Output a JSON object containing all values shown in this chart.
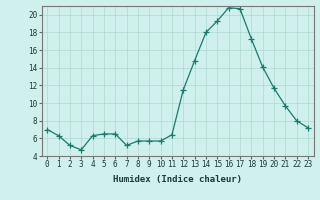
{
  "x": [
    0,
    1,
    2,
    3,
    4,
    5,
    6,
    7,
    8,
    9,
    10,
    11,
    12,
    13,
    14,
    15,
    16,
    17,
    18,
    19,
    20,
    21,
    22,
    23
  ],
  "y": [
    7.0,
    6.3,
    5.2,
    4.7,
    6.3,
    6.5,
    6.5,
    5.2,
    5.7,
    5.7,
    5.7,
    6.4,
    11.5,
    14.8,
    18.0,
    19.3,
    20.8,
    20.7,
    17.3,
    14.1,
    11.7,
    9.7,
    8.0,
    7.2
  ],
  "line_color": "#1a7a6e",
  "marker": "+",
  "marker_size": 4,
  "bg_color": "#cff0ec",
  "grid_color": "#b0d8d2",
  "xlabel": "Humidex (Indice chaleur)",
  "ylim": [
    4,
    21
  ],
  "xlim": [
    -0.5,
    23.5
  ],
  "yticks": [
    4,
    6,
    8,
    10,
    12,
    14,
    16,
    18,
    20
  ],
  "xtick_labels": [
    "0",
    "1",
    "2",
    "3",
    "4",
    "5",
    "6",
    "7",
    "8",
    "9",
    "10",
    "11",
    "12",
    "13",
    "14",
    "15",
    "16",
    "17",
    "18",
    "19",
    "20",
    "21",
    "22",
    "23"
  ],
  "tick_fontsize": 5.5,
  "label_fontsize": 6.5
}
